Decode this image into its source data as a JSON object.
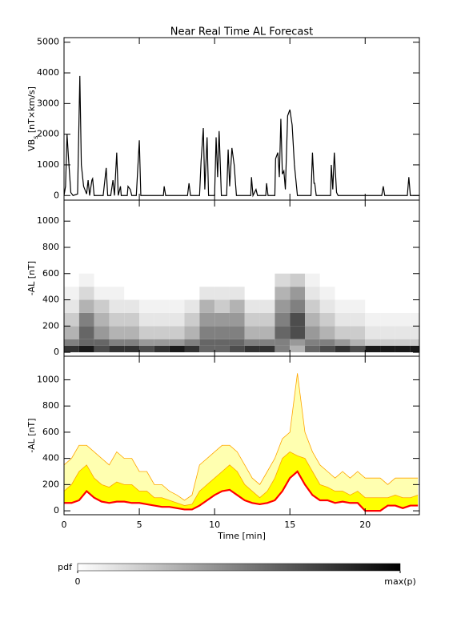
{
  "chart_data": [
    {
      "type": "line",
      "title": "Near Real Time AL Forecast",
      "ylabel": [
        "VB",
        "s",
        " [nT×km/s]"
      ],
      "xlim": [
        0,
        23.6
      ],
      "xticks": [
        0,
        5,
        10,
        15,
        20
      ],
      "ylim": [
        -150,
        5150
      ],
      "yticks": [
        0,
        1000,
        2000,
        3000,
        4000,
        5000
      ],
      "x": [
        0,
        0.1,
        0.2,
        0.3,
        0.45,
        0.6,
        0.9,
        1.05,
        1.15,
        1.3,
        1.5,
        1.6,
        1.7,
        1.85,
        1.9,
        2.0,
        2.6,
        2.8,
        2.9,
        3.1,
        3.25,
        3.35,
        3.5,
        3.6,
        3.75,
        3.8,
        3.9,
        4.2,
        4.25,
        4.4,
        4.5,
        4.8,
        4.9,
        5.0,
        5.1,
        6.6,
        6.65,
        6.75,
        8.2,
        8.3,
        8.4,
        9.0,
        9.1,
        9.25,
        9.35,
        9.5,
        9.6,
        10.0,
        10.1,
        10.2,
        10.3,
        10.45,
        10.8,
        10.9,
        11.0,
        11.15,
        11.3,
        11.45,
        12.4,
        12.45,
        12.55,
        12.75,
        12.85,
        13.4,
        13.45,
        13.55,
        14.0,
        14.05,
        14.2,
        14.3,
        14.4,
        14.5,
        14.6,
        14.7,
        14.85,
        15.0,
        15.15,
        15.3,
        15.4,
        15.5,
        16.4,
        16.5,
        16.6,
        16.65,
        16.75,
        17.7,
        17.75,
        17.85,
        17.95,
        18.1,
        18.2,
        21.1,
        21.2,
        21.3,
        22.8,
        22.9,
        23.0,
        23.6
      ],
      "series": [
        {
          "color": "#000000",
          "values": [
            0,
            300,
            2000,
            1200,
            100,
            0,
            50,
            3900,
            1000,
            300,
            50,
            500,
            0,
            500,
            550,
            0,
            0,
            900,
            0,
            0,
            500,
            0,
            1400,
            0,
            300,
            0,
            0,
            0,
            300,
            200,
            0,
            0,
            900,
            1800,
            0,
            0,
            300,
            0,
            0,
            400,
            0,
            0,
            1100,
            2200,
            200,
            1900,
            0,
            0,
            1900,
            600,
            2100,
            0,
            0,
            1500,
            300,
            1550,
            1000,
            0,
            0,
            600,
            0,
            200,
            0,
            0,
            400,
            0,
            0,
            1200,
            1400,
            600,
            2500,
            700,
            800,
            200,
            2600,
            2800,
            2300,
            1000,
            500,
            0,
            0,
            1400,
            400,
            400,
            0,
            0,
            1000,
            200,
            1400,
            100,
            0,
            0,
            300,
            0,
            0,
            600,
            0,
            0
          ]
        }
      ]
    },
    {
      "type": "heatmap",
      "ylabel": "-AL [nT]",
      "xlim": [
        0,
        23.6
      ],
      "xticks": [
        0,
        5,
        10,
        15,
        20
      ],
      "ylim": [
        -30,
        1160
      ],
      "yticks": [
        0,
        200,
        400,
        600,
        800,
        1000
      ],
      "xbins": [
        0,
        1,
        2,
        3,
        4,
        5,
        6,
        7,
        8,
        9,
        10,
        11,
        12,
        13,
        14,
        15,
        16,
        17,
        18,
        19,
        20,
        21,
        22,
        23,
        24
      ],
      "ybins": [
        0,
        50,
        100,
        200,
        300,
        400,
        500,
        600
      ],
      "z": [
        [
          0.8,
          0.9,
          0.7,
          0.8,
          0.8,
          0.7,
          0.8,
          0.9,
          0.8,
          0.6,
          0.6,
          0.7,
          0.8,
          0.8,
          0.5,
          0.3,
          0.6,
          0.7,
          0.8,
          0.7,
          0.9,
          0.9,
          0.9,
          0.9
        ],
        [
          0.5,
          0.6,
          0.6,
          0.5,
          0.5,
          0.4,
          0.4,
          0.4,
          0.5,
          0.6,
          0.6,
          0.6,
          0.5,
          0.5,
          0.5,
          0.4,
          0.5,
          0.5,
          0.4,
          0.3,
          0.2,
          0.2,
          0.2,
          0.2
        ],
        [
          0.3,
          0.6,
          0.4,
          0.3,
          0.3,
          0.2,
          0.2,
          0.2,
          0.3,
          0.5,
          0.5,
          0.5,
          0.3,
          0.3,
          0.6,
          0.7,
          0.4,
          0.3,
          0.2,
          0.2,
          0.1,
          0.1,
          0.1,
          0.1
        ],
        [
          0.2,
          0.5,
          0.3,
          0.2,
          0.2,
          0.1,
          0.1,
          0.1,
          0.2,
          0.4,
          0.4,
          0.4,
          0.2,
          0.2,
          0.5,
          0.7,
          0.3,
          0.2,
          0.1,
          0.1,
          0.05,
          0.05,
          0.05,
          0.05
        ],
        [
          0.1,
          0.3,
          0.2,
          0.1,
          0.1,
          0.05,
          0.05,
          0.05,
          0.1,
          0.3,
          0.2,
          0.3,
          0.1,
          0.1,
          0.4,
          0.5,
          0.2,
          0.1,
          0.05,
          0.05,
          0,
          0,
          0,
          0
        ],
        [
          0.05,
          0.15,
          0.05,
          0.05,
          0,
          0,
          0,
          0,
          0,
          0.1,
          0.1,
          0.1,
          0,
          0,
          0.3,
          0.4,
          0.1,
          0.05,
          0,
          0,
          0,
          0,
          0,
          0
        ],
        [
          0,
          0.05,
          0,
          0,
          0,
          0,
          0,
          0,
          0,
          0,
          0,
          0,
          0,
          0,
          0.15,
          0.2,
          0.05,
          0,
          0,
          0,
          0,
          0,
          0,
          0
        ]
      ],
      "zlabel": "pdf",
      "zlim": [
        0,
        1
      ],
      "zticks": [
        0,
        {
          "value": 1,
          "label": "max(p)"
        }
      ]
    },
    {
      "type": "area",
      "ylabel": "-AL [nT]",
      "xlabel": "Time [min]",
      "xlim": [
        0,
        23.6
      ],
      "xticks": [
        0,
        5,
        10,
        15,
        20
      ],
      "ylim": [
        -30,
        1180
      ],
      "yticks": [
        0,
        200,
        400,
        600,
        800,
        1000
      ],
      "x": [
        0,
        0.5,
        1,
        1.5,
        2,
        2.5,
        3,
        3.5,
        4,
        4.5,
        5,
        5.5,
        6,
        6.5,
        7,
        7.5,
        8,
        8.5,
        9,
        9.5,
        10,
        10.5,
        11,
        11.5,
        12,
        12.5,
        13,
        13.5,
        14,
        14.5,
        15,
        15.5,
        16,
        16.5,
        17,
        17.5,
        18,
        18.5,
        19,
        19.5,
        20,
        20.5,
        21,
        21.5,
        22,
        22.5,
        23,
        23.5
      ],
      "series": [
        {
          "color": "#ff0000",
          "values": [
            60,
            60,
            80,
            150,
            100,
            70,
            60,
            70,
            70,
            60,
            60,
            50,
            40,
            30,
            30,
            20,
            10,
            10,
            40,
            80,
            120,
            150,
            160,
            120,
            80,
            60,
            50,
            60,
            80,
            150,
            250,
            300,
            200,
            120,
            80,
            80,
            60,
            70,
            60,
            60,
            0,
            0,
            0,
            40,
            40,
            20,
            40,
            40
          ]
        },
        {
          "color": "#ffa500",
          "fill": "#ffff00",
          "values": [
            150,
            200,
            300,
            350,
            250,
            200,
            180,
            220,
            200,
            200,
            150,
            150,
            100,
            100,
            80,
            60,
            40,
            50,
            150,
            200,
            250,
            300,
            350,
            300,
            200,
            150,
            100,
            150,
            250,
            400,
            450,
            420,
            400,
            300,
            200,
            180,
            150,
            150,
            120,
            150,
            100,
            100,
            100,
            100,
            120,
            100,
            100,
            120
          ]
        },
        {
          "color": "#ffa500",
          "fill": "#ffffb0",
          "values": [
            350,
            400,
            500,
            500,
            450,
            400,
            350,
            450,
            400,
            400,
            300,
            300,
            200,
            200,
            150,
            120,
            80,
            120,
            350,
            400,
            450,
            500,
            500,
            450,
            350,
            250,
            200,
            300,
            400,
            550,
            600,
            1050,
            600,
            450,
            350,
            300,
            250,
            300,
            250,
            300,
            250,
            250,
            250,
            200,
            250,
            250,
            250,
            250
          ]
        }
      ]
    }
  ]
}
